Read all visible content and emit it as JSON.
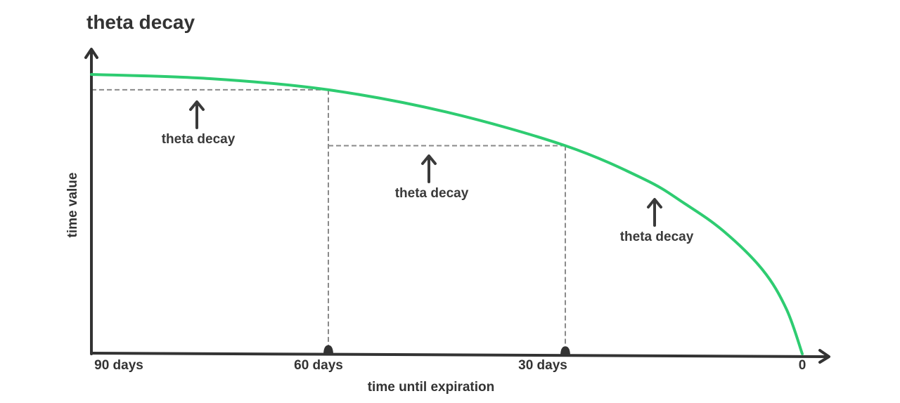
{
  "chart_data": {
    "type": "line",
    "title": "theta decay",
    "xlabel": "time until expiration",
    "ylabel": "time value",
    "x_ticks": [
      "90 days",
      "60 days",
      "30 days",
      "0"
    ],
    "series": [
      {
        "color": "#2ecc71",
        "x": [
          90,
          75,
          60,
          45,
          30,
          20,
          15,
          10,
          5,
          2,
          0
        ],
        "y": [
          1.0,
          0.985,
          0.945,
          0.865,
          0.745,
          0.625,
          0.54,
          0.44,
          0.3,
          0.16,
          0.0
        ]
      }
    ],
    "reference_levels": [
      {
        "from_x": 90,
        "to_x": 60,
        "y": 0.945
      },
      {
        "from_x": 60,
        "to_x": 30,
        "y": 0.745
      }
    ],
    "annotations": [
      "theta decay",
      "theta decay",
      "theta decay"
    ],
    "colors": {
      "curve": "#2ecc71",
      "axis": "#333333",
      "guide": "#8a8a8a"
    }
  }
}
